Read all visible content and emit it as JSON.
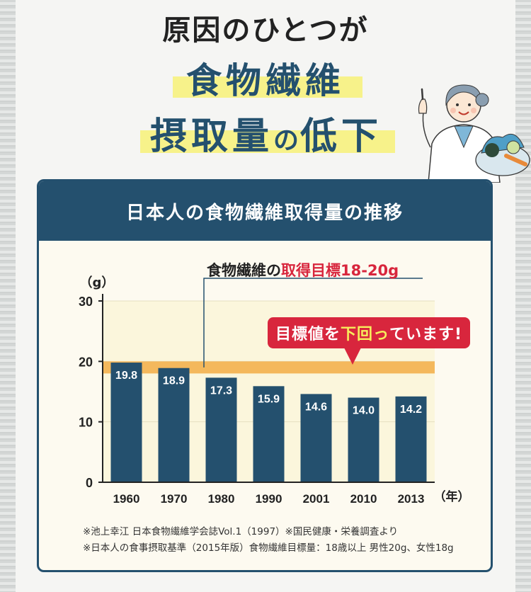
{
  "heading": {
    "line1": "原因のひとつが",
    "line2": "食物繊維",
    "line3_main": "摂取量",
    "line3_particle": "の",
    "line3_end": "低下"
  },
  "card_title": "日本人の食物繊維取得量の推移",
  "callout": {
    "prefix": "食物繊維の",
    "highlight": "取得目標18-20g"
  },
  "badge": {
    "prefix": "目標値を",
    "highlight": "下回っ",
    "suffix": "ています!"
  },
  "notes": [
    "※池上幸江 日本食物繊維学会誌Vol.1（1997）※国民健康・栄養調査より",
    "※日本人の食事摂取基準（2015年版）食物繊維目標量：18歳以上 男性20g、女性18g"
  ],
  "colors": {
    "navy": "#24506e",
    "red": "#d8263d",
    "target_band": "#f4b85c",
    "highlight_yellow": "#f7f28a"
  },
  "chart_data": {
    "type": "bar",
    "categories": [
      "1960",
      "1970",
      "1980",
      "1990",
      "2001",
      "2010",
      "2013"
    ],
    "values": [
      19.8,
      18.9,
      17.3,
      15.9,
      14.6,
      14.0,
      14.2
    ],
    "value_labels": [
      "19.8",
      "18.9",
      "17.3",
      "15.9",
      "14.6",
      "14.0",
      "14.2"
    ],
    "ylabel": "（g）",
    "xunit": "（年）",
    "ylim": [
      0,
      30
    ],
    "yticks": [
      0,
      10,
      20,
      30
    ],
    "target_range": [
      18,
      20
    ],
    "grid": true
  }
}
